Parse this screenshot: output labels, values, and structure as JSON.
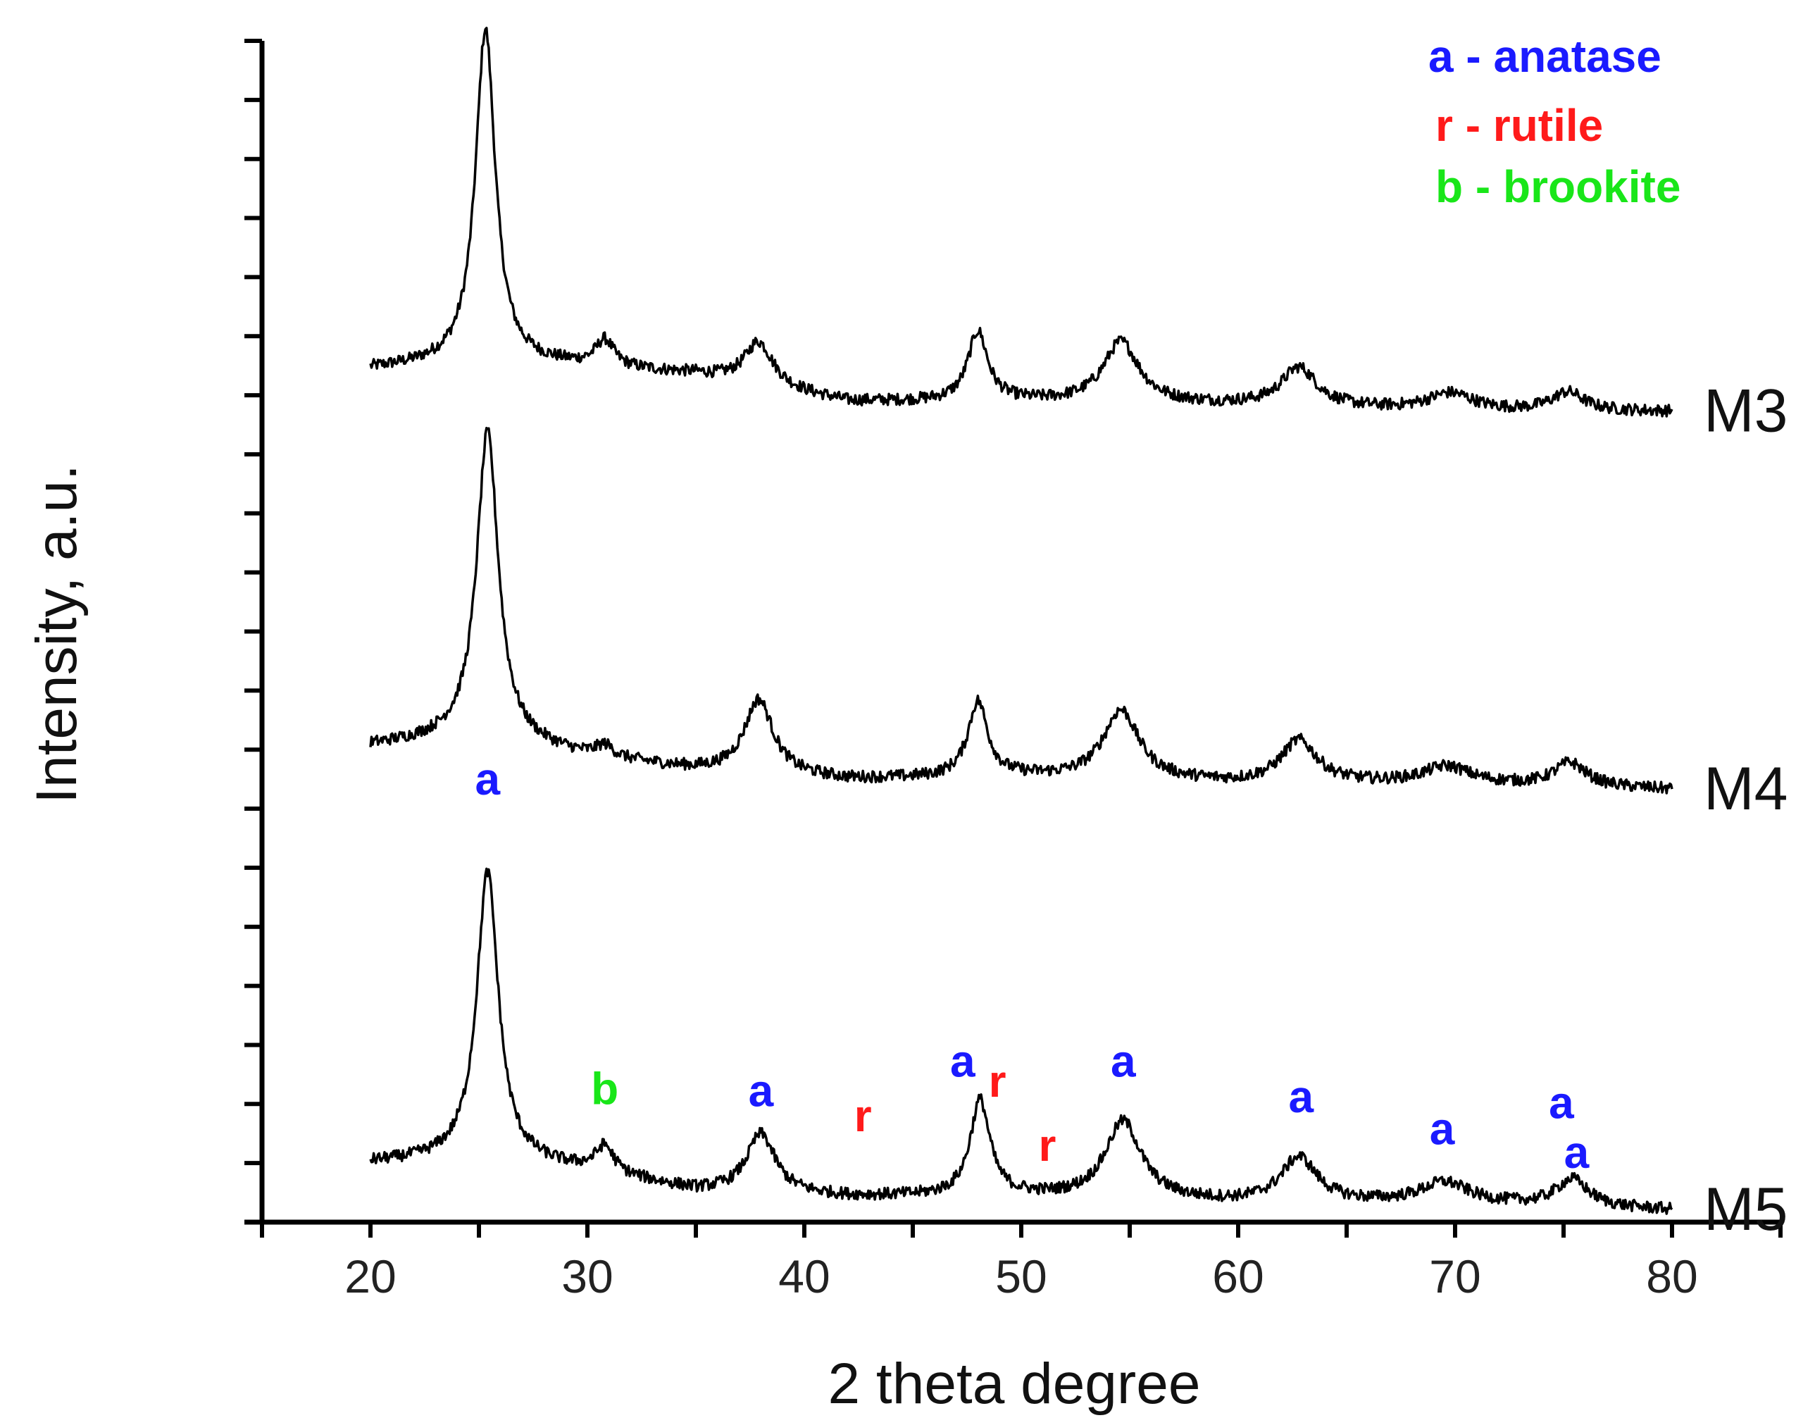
{
  "chart_data": {
    "type": "line",
    "title": "",
    "xlabel": "2 theta degree",
    "ylabel": "Intensity, a.u.",
    "xlim": [
      15,
      85
    ],
    "ylim": [
      0,
      100
    ],
    "x_ticks": [
      20,
      30,
      40,
      50,
      60,
      70,
      80
    ],
    "x_tick_labels": [
      "20",
      "30",
      "40",
      "50",
      "60",
      "70",
      "80"
    ],
    "y_tick_count": 21,
    "grid": false,
    "colors": {
      "anatase": "#1a1aff",
      "rutile": "#ff1a1a",
      "brookite": "#19e619",
      "line": "#000000"
    },
    "legend": {
      "placement": "top-right",
      "entries": [
        {
          "text": "a - anatase",
          "phase": "anatase"
        },
        {
          "text": "r - rutile",
          "phase": "rutile"
        },
        {
          "text": "b - brookite",
          "phase": "brookite"
        }
      ]
    },
    "series": [
      {
        "name": "M3",
        "baseline": [
          [
            20,
            72.2
          ],
          [
            25,
            72.8
          ],
          [
            30,
            72.4
          ],
          [
            35,
            71.7
          ],
          [
            42,
            69.4
          ],
          [
            50,
            69.4
          ],
          [
            60,
            69.1
          ],
          [
            70,
            68.6
          ],
          [
            80,
            68.6
          ]
        ],
        "peaks": [
          {
            "x": 25.3,
            "height": 28.2,
            "width": 0.55
          },
          {
            "x": 30.8,
            "height": 2.2,
            "width": 0.5
          },
          {
            "x": 37.9,
            "height": 3.7,
            "width": 0.8
          },
          {
            "x": 48.0,
            "height": 5.9,
            "width": 0.55
          },
          {
            "x": 54.6,
            "height": 5.2,
            "width": 1.0
          },
          {
            "x": 62.8,
            "height": 3.3,
            "width": 1.0
          },
          {
            "x": 69.8,
            "height": 1.5,
            "width": 1.3
          },
          {
            "x": 75.2,
            "height": 1.6,
            "width": 0.9
          }
        ]
      },
      {
        "name": "M4",
        "baseline": [
          [
            20,
            40.3
          ],
          [
            25,
            41.0
          ],
          [
            30,
            39.3
          ],
          [
            35,
            38.2
          ],
          [
            42,
            37.4
          ],
          [
            50,
            37.6
          ],
          [
            60,
            37.1
          ],
          [
            70,
            37.1
          ],
          [
            80,
            36.6
          ]
        ],
        "peaks": [
          {
            "x": 25.4,
            "height": 26.0,
            "width": 0.6
          },
          {
            "x": 30.8,
            "height": 1.0,
            "width": 0.5
          },
          {
            "x": 37.9,
            "height": 6.3,
            "width": 0.8
          },
          {
            "x": 48.0,
            "height": 6.4,
            "width": 0.55
          },
          {
            "x": 54.6,
            "height": 5.9,
            "width": 1.0
          },
          {
            "x": 62.8,
            "height": 3.6,
            "width": 1.0
          },
          {
            "x": 69.6,
            "height": 1.4,
            "width": 1.3
          },
          {
            "x": 75.3,
            "height": 2.0,
            "width": 0.9
          }
        ]
      },
      {
        "name": "M5",
        "baseline": [
          [
            20,
            5.0
          ],
          [
            25,
            5.3
          ],
          [
            30,
            4.3
          ],
          [
            35,
            2.6
          ],
          [
            42,
            2.1
          ],
          [
            50,
            2.1
          ],
          [
            60,
            1.6
          ],
          [
            70,
            1.6
          ],
          [
            80,
            1.0
          ]
        ],
        "peaks": [
          {
            "x": 25.4,
            "height": 24.4,
            "width": 0.6
          },
          {
            "x": 30.8,
            "height": 2.2,
            "width": 0.5
          },
          {
            "x": 38.0,
            "height": 5.0,
            "width": 0.8
          },
          {
            "x": 48.1,
            "height": 8.1,
            "width": 0.55
          },
          {
            "x": 54.7,
            "height": 6.6,
            "width": 1.0
          },
          {
            "x": 62.8,
            "height": 3.8,
            "width": 1.0
          },
          {
            "x": 69.5,
            "height": 1.7,
            "width": 1.3
          },
          {
            "x": 75.4,
            "height": 2.3,
            "width": 0.9
          }
        ]
      }
    ],
    "annotations": [
      {
        "text": "a",
        "phase": "anatase",
        "x": 25.4,
        "y": 36.2
      },
      {
        "text": "b",
        "phase": "brookite",
        "x": 30.8,
        "y": 10.0
      },
      {
        "text": "a",
        "phase": "anatase",
        "x": 38.0,
        "y": 9.8
      },
      {
        "text": "r",
        "phase": "rutile",
        "x": 42.7,
        "y": 7.7
      },
      {
        "text": "a",
        "phase": "anatase",
        "x": 47.3,
        "y": 12.3
      },
      {
        "text": "r",
        "phase": "rutile",
        "x": 48.9,
        "y": 10.6
      },
      {
        "text": "r",
        "phase": "rutile",
        "x": 51.2,
        "y": 5.2
      },
      {
        "text": "a",
        "phase": "anatase",
        "x": 54.7,
        "y": 12.3
      },
      {
        "text": "a",
        "phase": "anatase",
        "x": 62.9,
        "y": 9.3
      },
      {
        "text": "a",
        "phase": "anatase",
        "x": 69.4,
        "y": 6.6
      },
      {
        "text": "a",
        "phase": "anatase",
        "x": 74.9,
        "y": 8.8
      },
      {
        "text": "a",
        "phase": "anatase",
        "x": 75.6,
        "y": 4.6
      }
    ]
  }
}
